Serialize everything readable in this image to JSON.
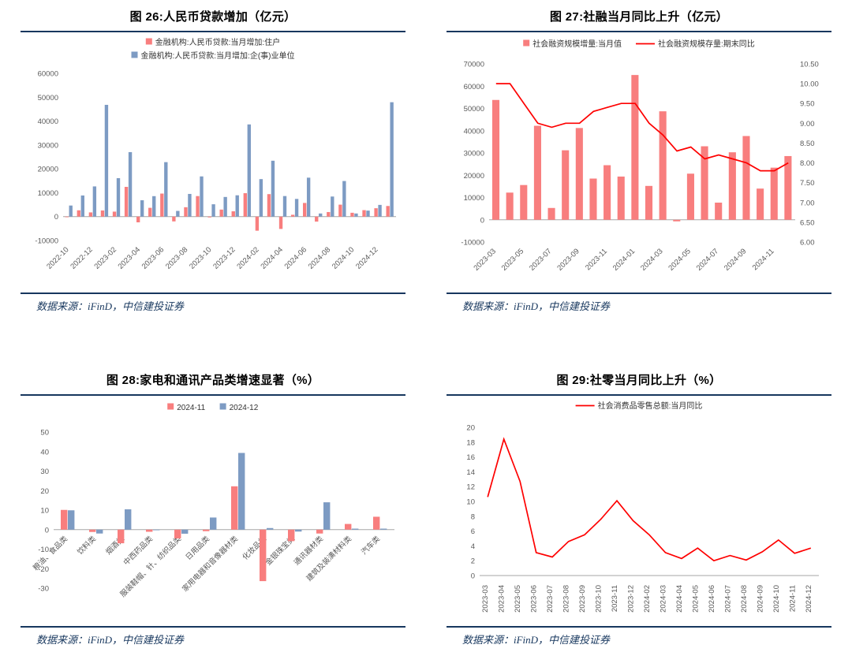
{
  "source_note": "数据来源：iFinD，中信建投证券",
  "colors": {
    "pink": "#F87E7E",
    "blue": "#7D9BC3",
    "red": "#FE0000",
    "navy": "#17375E",
    "axis": "#A6A6A6"
  },
  "chart_data": [
    {
      "type": "bar",
      "title": "图 26:人民币贷款增加（亿元）",
      "ylabel": "",
      "ylim": [
        -10000,
        60000
      ],
      "yticks": [
        60000,
        50000,
        40000,
        30000,
        20000,
        10000,
        0,
        -10000
      ],
      "grid": "off",
      "legend_position": "top",
      "categories": [
        "2022-10",
        "2022-11",
        "2022-12",
        "2023-01",
        "2023-02",
        "2023-03",
        "2023-04",
        "2023-05",
        "2023-06",
        "2023-07",
        "2023-08",
        "2023-09",
        "2023-10",
        "2023-11",
        "2023-12",
        "2024-01",
        "2024-02",
        "2024-03",
        "2024-04",
        "2024-05",
        "2024-06",
        "2024-07",
        "2024-08",
        "2024-09",
        "2024-10",
        "2024-11",
        "2024-12",
        "2025-01"
      ],
      "series": [
        {
          "name": "金融机构:人民币贷款:当月增加:住户",
          "type": "bar",
          "color": "pink",
          "values": [
            -180,
            2630,
            1750,
            2570,
            2080,
            12450,
            -2410,
            3670,
            9640,
            -2010,
            3920,
            8590,
            -350,
            2930,
            2220,
            9800,
            -5910,
            9410,
            -5170,
            760,
            5710,
            -2100,
            1900,
            5000,
            1600,
            2700,
            3500,
            4440
          ]
        },
        {
          "name": "金融机构:人民币贷款:当月增加:企(事)业单位",
          "type": "bar",
          "color": "blue",
          "values": [
            4630,
            8840,
            12640,
            46800,
            16100,
            27000,
            6840,
            8560,
            22800,
            2380,
            9490,
            16830,
            5160,
            8220,
            8920,
            38600,
            15700,
            23400,
            8600,
            7400,
            16300,
            1300,
            8400,
            14900,
            1300,
            2500,
            4900,
            47900
          ]
        }
      ]
    },
    {
      "type": "bar+line",
      "title": "图 27:社融当月同比上升（亿元）",
      "ylim": [
        -10000,
        70000
      ],
      "yticks": [
        70000,
        60000,
        50000,
        40000,
        30000,
        20000,
        10000,
        0,
        -10000
      ],
      "y2lim": [
        6.0,
        10.5
      ],
      "y2ticks": [
        "10.50",
        "10.00",
        "9.50",
        "9.00",
        "8.50",
        "8.00",
        "7.50",
        "7.00",
        "6.50",
        "6.00"
      ],
      "grid": "off",
      "legend_position": "top",
      "categories": [
        "2023-03",
        "2023-04",
        "2023-05",
        "2023-06",
        "2023-07",
        "2023-08",
        "2023-09",
        "2023-10",
        "2023-11",
        "2023-12",
        "2024-01",
        "2024-02",
        "2024-03",
        "2024-04",
        "2024-05",
        "2024-06",
        "2024-07",
        "2024-08",
        "2024-09",
        "2024-10",
        "2024-11",
        "2024-12"
      ],
      "series": [
        {
          "name": "社会融资规模增量:当月值",
          "type": "bar",
          "color": "pink",
          "values": [
            53800,
            12200,
            15600,
            42200,
            5300,
            31200,
            41200,
            18500,
            24500,
            19400,
            65000,
            15200,
            48700,
            -700,
            20700,
            33000,
            7700,
            30300,
            37600,
            14000,
            23400,
            28600
          ]
        },
        {
          "name": "社会融资规模存量:期末同比",
          "type": "line",
          "color": "red",
          "axis": "y2",
          "values": [
            10.0,
            10.0,
            9.5,
            9.0,
            8.9,
            9.0,
            9.0,
            9.3,
            9.4,
            9.5,
            9.5,
            9.0,
            8.7,
            8.3,
            8.4,
            8.1,
            8.2,
            8.1,
            8.0,
            7.8,
            7.8,
            8.0
          ]
        }
      ]
    },
    {
      "type": "bar",
      "title": "图 28:家电和通讯产品类增速显著（%）",
      "ylim": [
        -30,
        50
      ],
      "yticks": [
        50,
        40,
        30,
        20,
        10,
        0,
        -10,
        -20,
        -30
      ],
      "grid": "off",
      "legend_position": "top",
      "categories": [
        "粮油、食品类",
        "饮料类",
        "烟酒类",
        "中西药品类",
        "服装鞋帽、针、纺织品类",
        "日用品类",
        "家用电器和音像器材类",
        "化妆品类",
        "金银珠宝类",
        "通讯器材类",
        "建筑及装潢材料类",
        "汽车类"
      ],
      "series": [
        {
          "name": "2024-11",
          "type": "bar",
          "color": "pink",
          "values": [
            10.1,
            -1.2,
            -7.0,
            -1.1,
            -4.5,
            -0.8,
            22.2,
            -26.4,
            -5.9,
            -2.0,
            2.9,
            6.6
          ]
        },
        {
          "name": "2024-12",
          "type": "bar",
          "color": "blue",
          "values": [
            9.9,
            -2.0,
            10.4,
            -0.3,
            -2.1,
            6.2,
            39.3,
            0.8,
            -1.0,
            14.0,
            0.5,
            0.5
          ]
        }
      ]
    },
    {
      "type": "line",
      "title": "图 29:社零当月同比上升（%）",
      "ylim": [
        0,
        20
      ],
      "yticks": [
        20,
        18,
        16,
        14,
        12,
        10,
        8,
        6,
        4,
        2,
        0
      ],
      "grid": "off",
      "legend_position": "top",
      "categories": [
        "2023-03",
        "2023-04",
        "2023-05",
        "2023-06",
        "2023-07",
        "2023-08",
        "2023-09",
        "2023-10",
        "2023-11",
        "2023-12",
        "2024-02",
        "2024-03",
        "2024-04",
        "2024-05",
        "2024-06",
        "2024-07",
        "2024-08",
        "2024-09",
        "2024-10",
        "2024-11",
        "2024-12"
      ],
      "series": [
        {
          "name": "社会消费品零售总额:当月同比",
          "type": "line",
          "color": "red",
          "values": [
            10.6,
            18.4,
            12.7,
            3.1,
            2.5,
            4.6,
            5.5,
            7.6,
            10.1,
            7.4,
            5.5,
            3.1,
            2.3,
            3.7,
            2.0,
            2.7,
            2.1,
            3.2,
            4.8,
            3.0,
            3.7
          ]
        }
      ]
    }
  ]
}
